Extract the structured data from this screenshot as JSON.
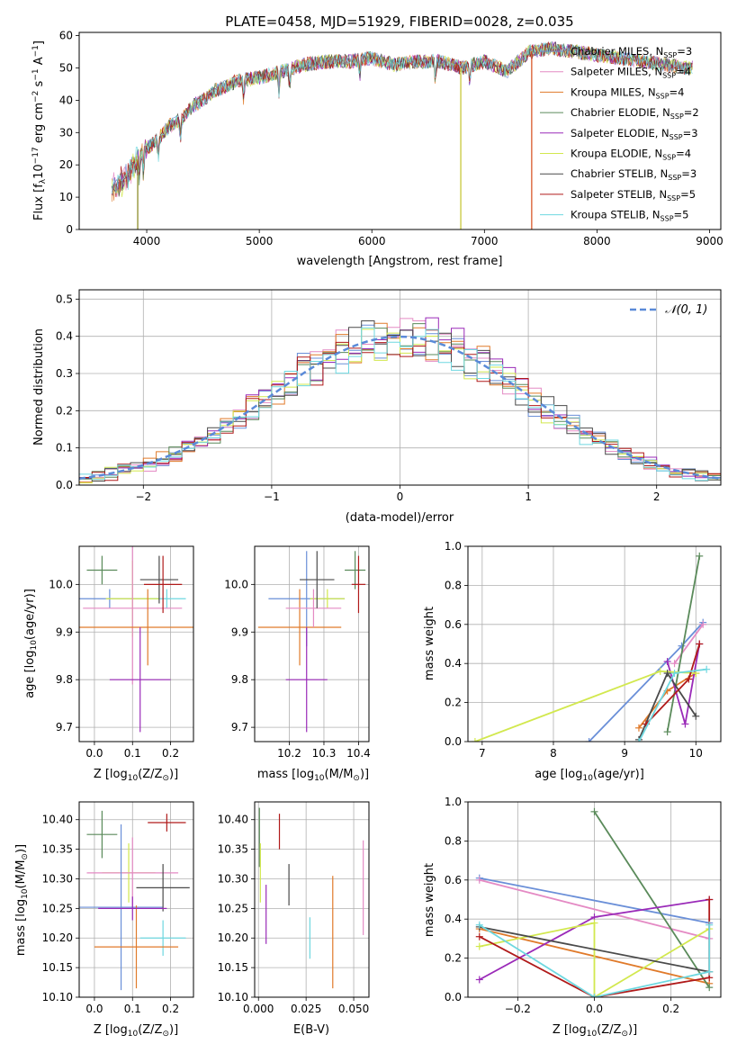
{
  "chart_data": [
    {
      "id": "spectrum",
      "type": "line",
      "title": "PLATE=0458, MJD=51929, FIBERID=0028, z=0.035",
      "xlabel": "wavelength [Angstrom, rest frame]",
      "ylabel": "Flux [f",
      "ylabel_sub": "λ",
      "ylabel_rest": "10",
      "ylabel_exp": "−17",
      "ylabel_tail": " erg cm",
      "ylabel_exp2": "−2",
      "ylabel_tail2": " s",
      "ylabel_exp3": "−1",
      "ylabel_tail3": " A",
      "ylabel_exp4": "−1",
      "ylabel_end": "]",
      "xlim": [
        3400,
        9100
      ],
      "ylim": [
        0,
        61
      ],
      "xticks": [
        4000,
        5000,
        6000,
        7000,
        8000,
        9000
      ],
      "yticks": [
        0,
        10,
        20,
        30,
        40,
        50,
        60
      ],
      "data_envelope": {
        "x": [
          3690,
          3800,
          3900,
          4000,
          4100,
          4200,
          4300,
          4400,
          4500,
          4600,
          4700,
          4800,
          5000,
          5200,
          5400,
          5600,
          5800,
          6000,
          6200,
          6400,
          6600,
          6800,
          7000,
          7200,
          7400,
          7600,
          7800,
          8000,
          8200,
          8400,
          8600,
          8800
        ],
        "y": [
          13,
          15,
          21,
          25,
          28,
          32,
          34,
          38,
          40,
          43,
          44,
          46,
          47,
          49,
          51,
          52,
          52,
          53,
          51,
          52,
          52,
          50,
          52,
          49,
          55,
          56,
          55,
          54,
          53,
          52,
          51,
          50
        ]
      },
      "dropouts": [
        {
          "x": 3920,
          "color": "#8c8c2a"
        },
        {
          "x": 6790,
          "color": "#c8c83c"
        },
        {
          "x": 7420,
          "color": "#d8582a"
        }
      ],
      "legend_placement": "right",
      "series": [
        {
          "name": "Chabrier MILES, N",
          "sub": "SSP",
          "n": "=3",
          "color": "#6a8fd8"
        },
        {
          "name": "Salpeter MILES, N",
          "sub": "SSP",
          "n": "=4",
          "color": "#e48ac4"
        },
        {
          "name": "Kroupa MILES, N",
          "sub": "SSP",
          "n": "=4",
          "color": "#e07a2a"
        },
        {
          "name": "Chabrier ELODIE, N",
          "sub": "SSP",
          "n": "=2",
          "color": "#5a8a5a"
        },
        {
          "name": "Salpeter ELODIE, N",
          "sub": "SSP",
          "n": "=3",
          "color": "#9a2ab8"
        },
        {
          "name": "Kroupa ELODIE, N",
          "sub": "SSP",
          "n": "=4",
          "color": "#d2e84e"
        },
        {
          "name": "Chabrier STELIB, N",
          "sub": "SSP",
          "n": "=3",
          "color": "#4a4a4a"
        },
        {
          "name": "Salpeter STELIB, N",
          "sub": "SSP",
          "n": "=5",
          "color": "#b01a1a"
        },
        {
          "name": "Kroupa STELIB, N",
          "sub": "SSP",
          "n": "=5",
          "color": "#6ed8e0"
        }
      ]
    },
    {
      "id": "residuals",
      "type": "line",
      "xlabel": "(data-model)/error",
      "ylabel": "Normed distribution",
      "xlim": [
        -2.5,
        2.5
      ],
      "ylim": [
        0,
        0.525
      ],
      "xticks": [
        -2,
        -1,
        0,
        1,
        2
      ],
      "xtick_labels": [
        "−2",
        "−1",
        "0",
        "1",
        "2"
      ],
      "yticks": [
        0.0,
        0.1,
        0.2,
        0.3,
        0.4,
        0.5
      ],
      "ytick_labels": [
        "0.0",
        "0.1",
        "0.2",
        "0.3",
        "0.4",
        "0.5"
      ],
      "grid": true,
      "legend_label": "𝒩(0, 1)",
      "legend_placement": "top-right",
      "gauss_color": "#5a8ad8"
    },
    {
      "id": "age_vs_Z",
      "type": "scatter",
      "xlabel": "Z [log",
      "xlabel_sub": "10",
      "xlabel_rest": "(Z/Z",
      "xlabel_sun": "⊙",
      "xlabel_end": ")]",
      "ylabel": "age  [log",
      "ylabel_sub": "10",
      "ylabel_rest": "(age/yr)]",
      "xlim": [
        -0.04,
        0.26
      ],
      "ylim": [
        9.67,
        10.08
      ],
      "xticks": [
        0.0,
        0.1,
        0.2
      ],
      "yticks": [
        9.7,
        9.8,
        9.9,
        10.0
      ],
      "grid": true,
      "points": [
        {
          "x": 0.02,
          "y": 10.03,
          "xerr": 0.04,
          "yerr": 0.03,
          "color": "#5a8a5a"
        },
        {
          "x": 0.04,
          "y": 9.97,
          "xerr": 0.13,
          "yerr": 0.02,
          "color": "#6a8fd8"
        },
        {
          "x": 0.19,
          "y": 9.97,
          "xerr": 0.05,
          "yerr": 0.02,
          "color": "#6ed8e0"
        },
        {
          "x": 0.1,
          "y": 9.97,
          "xerr": 0.07,
          "yerr": 0.08,
          "color": "#d2e84e"
        },
        {
          "x": 0.1,
          "y": 9.95,
          "xerr": 0.13,
          "yerr": 0.16,
          "color": "#e48ac4"
        },
        {
          "x": 0.14,
          "y": 9.91,
          "xerr": 0.22,
          "yerr": 0.08,
          "color": "#e07a2a"
        },
        {
          "x": 0.17,
          "y": 10.01,
          "xerr": 0.05,
          "yerr": 0.05,
          "color": "#4a4a4a"
        },
        {
          "x": 0.18,
          "y": 10.0,
          "xerr": 0.05,
          "yerr": 0.06,
          "color": "#b01a1a"
        },
        {
          "x": 0.12,
          "y": 9.8,
          "xerr": 0.08,
          "yerr": 0.11,
          "color": "#9a2ab8"
        }
      ]
    },
    {
      "id": "age_vs_mass",
      "type": "scatter",
      "xlabel": "mass [log",
      "xlabel_sub": "10",
      "xlabel_rest": "(M/M",
      "xlabel_sun": "⊙",
      "xlabel_end": ")]",
      "xlim": [
        10.1,
        10.43
      ],
      "ylim": [
        9.67,
        10.08
      ],
      "xticks": [
        10.2,
        10.3,
        10.4
      ],
      "yticks": [
        9.7,
        9.8,
        9.9,
        10.0
      ],
      "grid": true,
      "points": [
        {
          "x": 10.25,
          "y": 9.97,
          "xerr": 0.11,
          "yerr": 0.1,
          "color": "#6a8fd8"
        },
        {
          "x": 10.31,
          "y": 9.97,
          "xerr": 0.05,
          "yerr": 0.02,
          "color": "#d2e84e"
        },
        {
          "x": 10.23,
          "y": 9.91,
          "xerr": 0.12,
          "yerr": 0.08,
          "color": "#e07a2a"
        },
        {
          "x": 10.27,
          "y": 9.95,
          "xerr": 0.08,
          "yerr": 0.04,
          "color": "#e48ac4"
        },
        {
          "x": 10.28,
          "y": 10.01,
          "xerr": 0.05,
          "yerr": 0.06,
          "color": "#4a4a4a"
        },
        {
          "x": 10.39,
          "y": 10.03,
          "xerr": 0.03,
          "yerr": 0.04,
          "color": "#5a8a5a"
        },
        {
          "x": 10.4,
          "y": 10.0,
          "xerr": 0.02,
          "yerr": 0.06,
          "color": "#b01a1a"
        },
        {
          "x": 10.25,
          "y": 9.8,
          "xerr": 0.06,
          "yerr": 0.11,
          "color": "#9a2ab8"
        }
      ]
    },
    {
      "id": "weight_vs_age",
      "type": "line",
      "xlabel": "age  [log",
      "xlabel_sub": "10",
      "xlabel_rest": "(age/yr)]",
      "ylabel": "mass weight",
      "xlim": [
        6.8,
        10.35
      ],
      "ylim": [
        0,
        1.0
      ],
      "xticks": [
        7,
        8,
        9,
        10
      ],
      "yticks": [
        0.0,
        0.2,
        0.4,
        0.6,
        0.8,
        1.0
      ],
      "ytick_labels": [
        "0.0",
        "0.2",
        "0.4",
        "0.6",
        "0.8",
        "1.0"
      ],
      "grid": true,
      "series": [
        {
          "color": "#6a8fd8",
          "x": [
            8.5,
            9.8,
            10.1
          ],
          "y": [
            0.0,
            0.49,
            0.61
          ]
        },
        {
          "color": "#e48ac4",
          "x": [
            9.7,
            10.1
          ],
          "y": [
            0.4,
            0.6
          ]
        },
        {
          "color": "#e07a2a",
          "x": [
            9.2,
            9.6,
            10.0
          ],
          "y": [
            0.07,
            0.26,
            0.35
          ]
        },
        {
          "color": "#5a8a5a",
          "x": [
            9.6,
            10.05
          ],
          "y": [
            0.05,
            0.95
          ]
        },
        {
          "color": "#9a2ab8",
          "x": [
            9.6,
            9.85,
            10.05
          ],
          "y": [
            0.41,
            0.09,
            0.5
          ]
        },
        {
          "color": "#d2e84e",
          "x": [
            6.9,
            9.5,
            10.0
          ],
          "y": [
            0.0,
            0.36,
            0.35
          ]
        },
        {
          "color": "#4a4a4a",
          "x": [
            9.2,
            9.6,
            10.0
          ],
          "y": [
            0.01,
            0.35,
            0.13
          ]
        },
        {
          "color": "#b01a1a",
          "x": [
            9.3,
            9.9,
            10.05
          ],
          "y": [
            0.09,
            0.32,
            0.5
          ]
        },
        {
          "color": "#6ed8e0",
          "x": [
            9.2,
            9.7,
            10.15
          ],
          "y": [
            0.0,
            0.35,
            0.37
          ]
        }
      ]
    },
    {
      "id": "mass_vs_Z",
      "type": "scatter",
      "xlabel": "Z [log",
      "xlabel_sub": "10",
      "xlabel_rest": "(Z/Z",
      "xlabel_sun": "⊙",
      "xlabel_end": ")]",
      "ylabel": "mass [log",
      "ylabel_sub": "10",
      "ylabel_rest": "(M/M",
      "ylabel_sun": "⊙",
      "ylabel_end": ")]",
      "xlim": [
        -0.04,
        0.26
      ],
      "ylim": [
        10.1,
        10.43
      ],
      "xticks": [
        0.0,
        0.1,
        0.2
      ],
      "yticks": [
        10.1,
        10.15,
        10.2,
        10.25,
        10.3,
        10.35,
        10.4
      ],
      "grid": true,
      "points": [
        {
          "x": 0.02,
          "y": 10.375,
          "xerr": 0.04,
          "yerr": 0.04,
          "color": "#5a8a5a"
        },
        {
          "x": 0.09,
          "y": 10.31,
          "xerr": 0.07,
          "yerr": 0.05,
          "color": "#d2e84e"
        },
        {
          "x": 0.1,
          "y": 10.31,
          "xerr": 0.12,
          "yerr": 0.06,
          "color": "#e48ac4"
        },
        {
          "x": 0.07,
          "y": 10.252,
          "xerr": 0.11,
          "yerr": 0.14,
          "color": "#6a8fd8"
        },
        {
          "x": 0.18,
          "y": 10.2,
          "xerr": 0.06,
          "yerr": 0.03,
          "color": "#6ed8e0"
        },
        {
          "x": 0.11,
          "y": 10.185,
          "xerr": 0.11,
          "yerr": 0.07,
          "color": "#e07a2a"
        },
        {
          "x": 0.18,
          "y": 10.285,
          "xerr": 0.07,
          "yerr": 0.04,
          "color": "#4a4a4a"
        },
        {
          "x": 0.19,
          "y": 10.395,
          "xerr": 0.05,
          "yerr": 0.015,
          "color": "#b01a1a"
        },
        {
          "x": 0.1,
          "y": 10.25,
          "xerr": 0.09,
          "yerr": 0.02,
          "color": "#9a2ab8"
        }
      ]
    },
    {
      "id": "mass_vs_ebv",
      "type": "scatter",
      "xlabel": "E(B-V)",
      "xlim": [
        -0.002,
        0.058
      ],
      "ylim": [
        10.1,
        10.43
      ],
      "xticks": [
        0.0,
        0.025,
        0.05
      ],
      "xtick_labels": [
        "0.000",
        "0.025",
        "0.050"
      ],
      "yticks": [
        10.1,
        10.15,
        10.2,
        10.25,
        10.3,
        10.35,
        10.4
      ],
      "grid": true,
      "points": [
        {
          "x": 0.0005,
          "y": 10.37,
          "yerr": 0.05,
          "color": "#5a8a5a"
        },
        {
          "x": 0.001,
          "y": 10.31,
          "yerr": 0.05,
          "color": "#d2e84e"
        },
        {
          "x": 0.004,
          "y": 10.24,
          "yerr": 0.05,
          "color": "#9a2ab8"
        },
        {
          "x": 0.011,
          "y": 10.38,
          "yerr": 0.03,
          "color": "#b01a1a"
        },
        {
          "x": 0.016,
          "y": 10.29,
          "yerr": 0.035,
          "color": "#4a4a4a"
        },
        {
          "x": 0.027,
          "y": 10.2,
          "yerr": 0.035,
          "color": "#6ed8e0"
        },
        {
          "x": 0.039,
          "y": 10.21,
          "yerr": 0.095,
          "color": "#e07a2a"
        },
        {
          "x": 0.055,
          "y": 10.285,
          "yerr": 0.08,
          "color": "#e48ac4"
        }
      ]
    },
    {
      "id": "weight_vs_Z",
      "type": "line",
      "xlabel": "Z [log",
      "xlabel_sub": "10",
      "xlabel_rest": "(Z/Z",
      "xlabel_sun": "⊙",
      "xlabel_end": ")]",
      "ylabel": "mass weight",
      "xlim": [
        -0.33,
        0.33
      ],
      "ylim": [
        0,
        1.0
      ],
      "xticks": [
        -0.2,
        0.0,
        0.2
      ],
      "xtick_labels": [
        "−0.2",
        "0.0",
        "0.2"
      ],
      "yticks": [
        0.0,
        0.2,
        0.4,
        0.6,
        0.8,
        1.0
      ],
      "ytick_labels": [
        "0.0",
        "0.2",
        "0.4",
        "0.6",
        "0.8",
        "1.0"
      ],
      "grid": true,
      "series": [
        {
          "color": "#6a8fd8",
          "x": [
            -0.3,
            0.3
          ],
          "y": [
            0.61,
            0.38
          ]
        },
        {
          "color": "#e48ac4",
          "x": [
            -0.3,
            0.3
          ],
          "y": [
            0.6,
            0.3
          ]
        },
        {
          "color": "#e07a2a",
          "x": [
            -0.3,
            0.3
          ],
          "y": [
            0.35,
            0.07
          ]
        },
        {
          "color": "#5a8a5a",
          "x": [
            0.0,
            0.3
          ],
          "y": [
            0.95,
            0.05
          ]
        },
        {
          "color": "#9a2ab8",
          "x": [
            -0.3,
            0.0,
            0.3
          ],
          "y": [
            0.09,
            0.41,
            0.5
          ]
        },
        {
          "color": "#d2e84e",
          "x": [
            -0.3,
            0.0,
            0.0,
            0.3
          ],
          "y": [
            0.26,
            0.38,
            0.0,
            0.35
          ]
        },
        {
          "color": "#4a4a4a",
          "x": [
            -0.3,
            0.3
          ],
          "y": [
            0.36,
            0.13
          ]
        },
        {
          "color": "#b01a1a",
          "x": [
            -0.3,
            0.0,
            0.3,
            0.3
          ],
          "y": [
            0.31,
            0.0,
            0.1,
            0.5
          ]
        },
        {
          "color": "#6ed8e0",
          "x": [
            -0.3,
            0.0,
            0.3,
            0.3
          ],
          "y": [
            0.37,
            0.0,
            0.13,
            0.37
          ]
        }
      ]
    }
  ]
}
